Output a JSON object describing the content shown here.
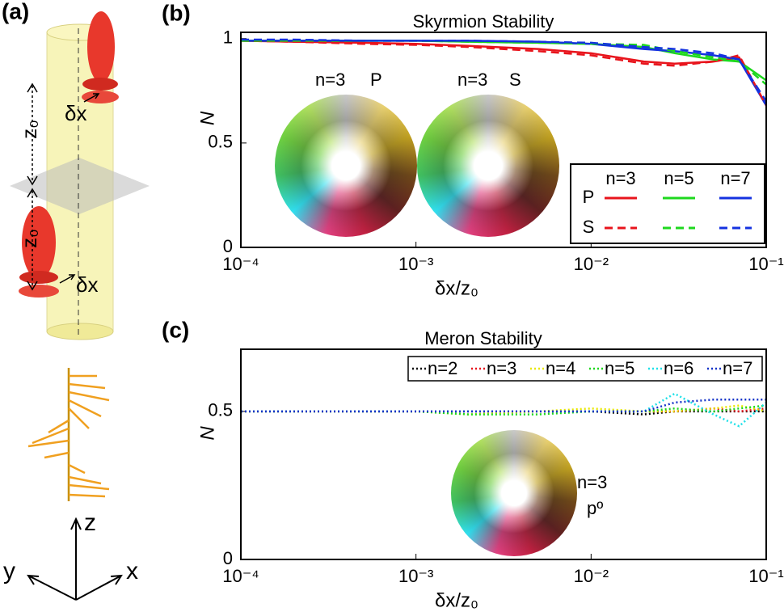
{
  "panel_a": {
    "label": "(a)",
    "z_spacing": [
      "z₀",
      "z₀"
    ],
    "shift": [
      "δx",
      "δx"
    ],
    "axes": [
      "z",
      "y",
      "x"
    ]
  },
  "chart_data": [
    {
      "type": "line",
      "panel": "(b)",
      "title": "Skyrmion Stability",
      "xlabel": "δx/z₀",
      "ylabel": "N",
      "xscale": "log",
      "xlim": [
        0.0001,
        0.1
      ],
      "ylim": [
        0,
        1.03
      ],
      "xticks": [
        {
          "value": 0.0001,
          "label": "10⁻⁴"
        },
        {
          "value": 0.001,
          "label": "10⁻³"
        },
        {
          "value": 0.01,
          "label": "10⁻²"
        },
        {
          "value": 0.1,
          "label": "10⁻¹"
        }
      ],
      "yticks": [
        0,
        0.5,
        1
      ],
      "annotations": [
        "n=3",
        "P",
        "n=3",
        "S"
      ],
      "x": [
        0.0001,
        0.0002,
        0.0005,
        0.001,
        0.002,
        0.005,
        0.01,
        0.02,
        0.03,
        0.05,
        0.07,
        0.1
      ],
      "series": [
        {
          "name": "P",
          "dash": "solid",
          "lines": [
            {
              "name": "n=3",
              "color": "#e8141c",
              "values": [
                0.99,
                0.985,
                0.98,
                0.975,
                0.965,
                0.95,
                0.93,
                0.89,
                0.88,
                0.89,
                0.91,
                0.68
              ]
            },
            {
              "name": "n=5",
              "color": "#1ed81e",
              "values": [
                0.99,
                0.99,
                0.99,
                0.99,
                0.985,
                0.98,
                0.975,
                0.96,
                0.93,
                0.9,
                0.89,
                0.8
              ]
            },
            {
              "name": "n=7",
              "color": "#1432e0",
              "values": [
                0.99,
                0.99,
                0.99,
                0.99,
                0.99,
                0.985,
                0.975,
                0.95,
                0.94,
                0.92,
                0.9,
                0.68
              ]
            }
          ]
        },
        {
          "name": "S",
          "dash": "dashed",
          "lines": [
            {
              "name": "n=3",
              "color": "#e8141c",
              "values": [
                0.99,
                0.985,
                0.975,
                0.97,
                0.96,
                0.94,
                0.92,
                0.88,
                0.87,
                0.89,
                0.92,
                0.68
              ]
            },
            {
              "name": "n=5",
              "color": "#1ed81e",
              "values": [
                0.99,
                0.99,
                0.99,
                0.99,
                0.985,
                0.98,
                0.975,
                0.97,
                0.94,
                0.91,
                0.89,
                0.78
              ]
            },
            {
              "name": "n=7",
              "color": "#1432e0",
              "values": [
                0.995,
                0.995,
                0.99,
                0.99,
                0.99,
                0.985,
                0.98,
                0.96,
                0.95,
                0.93,
                0.9,
                0.7
              ]
            }
          ]
        }
      ]
    },
    {
      "type": "line",
      "panel": "(c)",
      "title": "Meron Stability",
      "xlabel": "δx/z₀",
      "ylabel": "N",
      "xscale": "log",
      "xlim": [
        0.0001,
        0.1
      ],
      "ylim": [
        0,
        0.71
      ],
      "xticks": [
        {
          "value": 0.0001,
          "label": "10⁻⁴"
        },
        {
          "value": 0.001,
          "label": "10⁻³"
        },
        {
          "value": 0.01,
          "label": "10⁻²"
        },
        {
          "value": 0.1,
          "label": "10⁻¹"
        }
      ],
      "yticks": [
        0,
        0.5
      ],
      "annotations": [
        "n=3",
        "pº"
      ],
      "x": [
        0.0001,
        0.0002,
        0.0005,
        0.001,
        0.002,
        0.005,
        0.01,
        0.02,
        0.03,
        0.05,
        0.07,
        0.1
      ],
      "series": [
        {
          "name": "n=2",
          "color": "#000000",
          "values": [
            0.5,
            0.5,
            0.5,
            0.5,
            0.5,
            0.5,
            0.5,
            0.49,
            0.5,
            0.5,
            0.5,
            0.5
          ]
        },
        {
          "name": "n=3",
          "color": "#e8141c",
          "values": [
            0.5,
            0.5,
            0.5,
            0.5,
            0.5,
            0.5,
            0.5,
            0.5,
            0.5,
            0.51,
            0.5,
            0.51
          ]
        },
        {
          "name": "n=4",
          "color": "#e8e800",
          "values": [
            0.5,
            0.5,
            0.5,
            0.5,
            0.49,
            0.5,
            0.51,
            0.5,
            0.5,
            0.51,
            0.52,
            0.5
          ]
        },
        {
          "name": "n=5",
          "color": "#1ed81e",
          "values": [
            0.5,
            0.5,
            0.5,
            0.5,
            0.49,
            0.49,
            0.5,
            0.5,
            0.51,
            0.5,
            0.51,
            0.52
          ]
        },
        {
          "name": "n=6",
          "color": "#1ee0e8",
          "values": [
            0.5,
            0.5,
            0.5,
            0.5,
            0.5,
            0.5,
            0.5,
            0.5,
            0.56,
            0.49,
            0.45,
            0.53
          ]
        },
        {
          "name": "n=7",
          "color": "#1432c8",
          "values": [
            0.5,
            0.5,
            0.5,
            0.5,
            0.5,
            0.5,
            0.5,
            0.5,
            0.53,
            0.54,
            0.54,
            0.54
          ]
        }
      ]
    }
  ]
}
